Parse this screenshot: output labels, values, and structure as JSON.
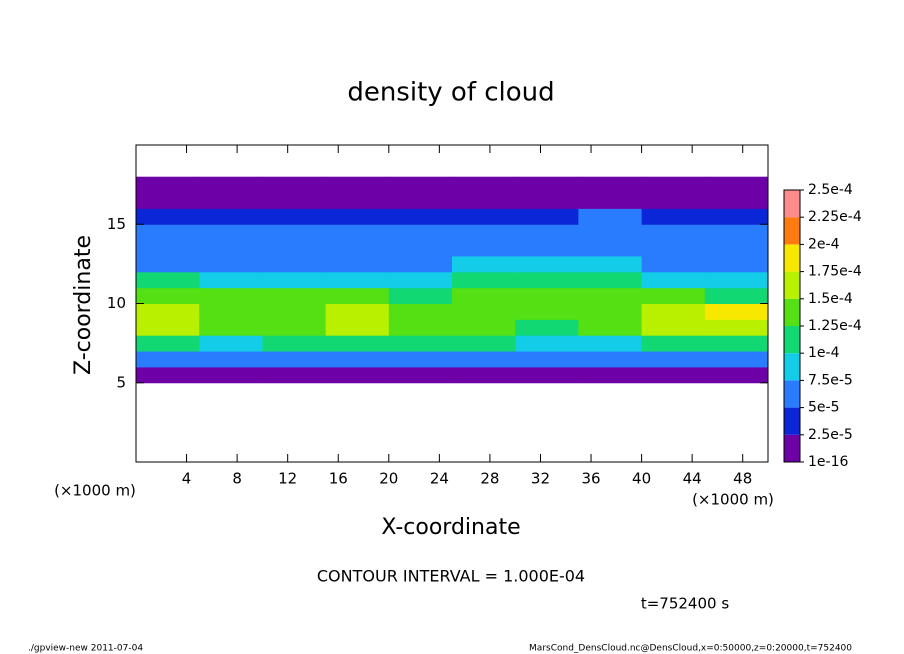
{
  "chart_data": {
    "type": "contour",
    "title": "density of cloud",
    "xlabel": "X-coordinate",
    "ylabel": "Z-coordinate",
    "x_unit": "(×1000 m)",
    "y_unit": "(×1000 m)",
    "xlim": [
      0,
      50
    ],
    "ylim": [
      0,
      20
    ],
    "xticks": [
      4,
      8,
      12,
      16,
      20,
      24,
      28,
      32,
      36,
      40,
      44,
      48
    ],
    "yticks": [
      5,
      10,
      15
    ],
    "x": [
      2.5,
      7.5,
      12.5,
      17.5,
      22.5,
      27.5,
      32.5,
      37.5,
      42.5,
      47.5
    ],
    "z": [
      5.5,
      6.5,
      7.5,
      8.5,
      9.5,
      10.5,
      11.5,
      12.5,
      13.5,
      14.5,
      15.5,
      16.5,
      17.5
    ],
    "values": [
      [
        2e-05,
        2e-05,
        2e-05,
        2e-05,
        2e-05,
        2e-05,
        2e-05,
        2e-05,
        2e-05,
        2e-05
      ],
      [
        6e-05,
        5e-05,
        6e-05,
        6e-05,
        6e-05,
        6e-05,
        5e-05,
        5e-05,
        6e-05,
        6e-05
      ],
      [
        0.00011,
        9e-05,
        0.00011,
        0.00011,
        0.00011,
        0.00011,
        8e-05,
        9e-05,
        0.00011,
        0.00011
      ],
      [
        0.00015,
        0.00013,
        0.00014,
        0.00015,
        0.00014,
        0.00014,
        0.00012,
        0.00013,
        0.00015,
        0.00016
      ],
      [
        0.00016,
        0.00014,
        0.00014,
        0.00015,
        0.00014,
        0.00014,
        0.00013,
        0.00013,
        0.00017,
        0.00018
      ],
      [
        0.00013,
        0.00013,
        0.00013,
        0.00013,
        0.00012,
        0.00013,
        0.00014,
        0.00013,
        0.00013,
        0.00012
      ],
      [
        0.0001,
        9e-05,
        9e-05,
        9e-05,
        9e-05,
        0.0001,
        0.00012,
        0.00011,
        9e-05,
        9e-05
      ],
      [
        7e-05,
        7e-05,
        7e-05,
        7e-05,
        7e-05,
        8e-05,
        9e-05,
        8e-05,
        7e-05,
        7e-05
      ],
      [
        6e-05,
        6e-05,
        6e-05,
        6e-05,
        6e-05,
        6e-05,
        6e-05,
        6e-05,
        6e-05,
        6e-05
      ],
      [
        5e-05,
        5e-05,
        5e-05,
        5e-05,
        5e-05,
        5e-05,
        5e-05,
        6e-05,
        5e-05,
        5e-05
      ],
      [
        4e-05,
        4e-05,
        4e-05,
        4e-05,
        4e-05,
        4e-05,
        4e-05,
        5e-05,
        4e-05,
        4e-05
      ],
      [
        2e-05,
        2e-05,
        2e-05,
        2e-05,
        2e-05,
        2e-05,
        2e-05,
        2e-05,
        2e-05,
        2e-05
      ],
      [
        1e-05,
        1e-05,
        1e-05,
        1e-05,
        1e-05,
        1e-05,
        1e-05,
        1e-05,
        1e-05,
        1e-05
      ]
    ],
    "levels": [
      {
        "value": 1e-16,
        "label": "1e-16"
      },
      {
        "value": 2.5e-05,
        "label": "2.5e-5"
      },
      {
        "value": 5e-05,
        "label": "5e-5"
      },
      {
        "value": 7.5e-05,
        "label": "7.5e-5"
      },
      {
        "value": 0.0001,
        "label": "1e-4"
      },
      {
        "value": 0.000125,
        "label": "1.25e-4"
      },
      {
        "value": 0.00015,
        "label": "1.5e-4"
      },
      {
        "value": 0.000175,
        "label": "1.75e-4"
      },
      {
        "value": 0.0002,
        "label": "2e-4"
      },
      {
        "value": 0.000225,
        "label": "2.25e-4"
      },
      {
        "value": 0.00025,
        "label": "2.5e-4"
      }
    ],
    "colors": [
      "#6e00a8",
      "#0a26d6",
      "#2a7cff",
      "#12cce8",
      "#12d874",
      "#54e012",
      "#b8f000",
      "#f8e800",
      "#ff7a10",
      "#ff8c8c"
    ],
    "annotations": {
      "contour_interval": "CONTOUR INTERVAL = 1.000E-04",
      "time": "t=752400 s",
      "program": "./gpview-new   2011-07-04",
      "source": "MarsCond_DensCloud.nc@DensCloud,x=0:50000,z=0:20000,t=752400"
    }
  }
}
